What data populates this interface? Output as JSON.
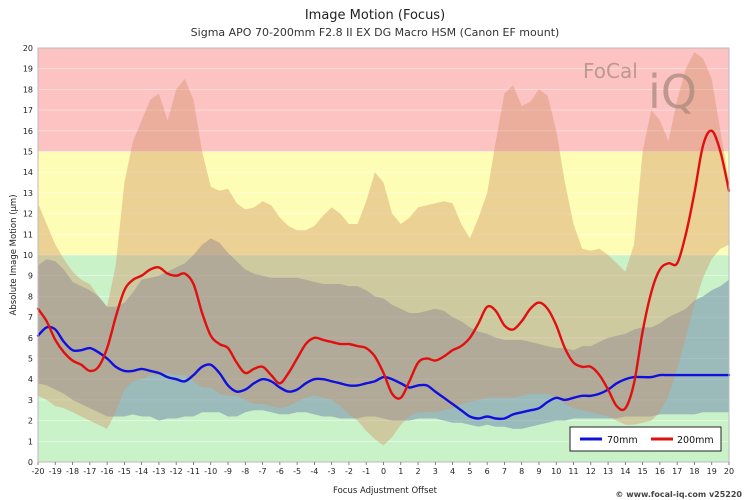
{
  "chart_data": {
    "type": "line",
    "title": "Image Motion (Focus)",
    "subtitle": "Sigma APO 70-200mm F2.8 II EX DG Macro HSM (Canon EF mount)",
    "xlabel": "Focus Adjustment Offset",
    "ylabel": "Absolute Image Motion (µm)",
    "xlim": [
      -20,
      20
    ],
    "ylim": [
      0,
      20
    ],
    "x_tick_labels": [
      "-20",
      "-19",
      "-18",
      "-17",
      "-16",
      "-15",
      "-14",
      "-13",
      "-12",
      "-11",
      "-10",
      "-9",
      "-8",
      "-7",
      "-6",
      "-5",
      "-4",
      "-3",
      "-2",
      "-1",
      "0",
      "1",
      "2",
      "3",
      "4",
      "5",
      "6",
      "7",
      "8",
      "9",
      "10",
      "11",
      "12",
      "13",
      "14",
      "15",
      "16",
      "17",
      "18",
      "19",
      "20"
    ],
    "y_tick_labels": [
      "0",
      "1",
      "2",
      "3",
      "4",
      "5",
      "6",
      "7",
      "8",
      "9",
      "10",
      "11",
      "12",
      "13",
      "14",
      "15",
      "16",
      "17",
      "18",
      "19",
      "20"
    ],
    "grid": true,
    "legend_position": "bottom-right",
    "zones": [
      {
        "from": 0,
        "to": 10,
        "color": "#c9f2c9"
      },
      {
        "from": 10,
        "to": 15,
        "color": "#fdfdb5"
      },
      {
        "from": 15,
        "to": 20,
        "color": "#fdc2c2"
      }
    ],
    "series": [
      {
        "name": "70mm",
        "color": "#1010dd",
        "band_color": "#5a6fa8",
        "x": [
          -20,
          -19.5,
          -19,
          -18.5,
          -18,
          -17.5,
          -17,
          -16.5,
          -16,
          -15.5,
          -15,
          -14.5,
          -14,
          -13.5,
          -13,
          -12.5,
          -12,
          -11.5,
          -11,
          -10.5,
          -10,
          -9.5,
          -9,
          -8.5,
          -8,
          -7.5,
          -7,
          -6.5,
          -6,
          -5.5,
          -5,
          -4.5,
          -4,
          -3.5,
          -3,
          -2.5,
          -2,
          -1.5,
          -1,
          -0.5,
          0,
          0.5,
          1,
          1.5,
          2,
          2.5,
          3,
          3.5,
          4,
          4.5,
          5,
          5.5,
          6,
          6.5,
          7,
          7.5,
          8,
          8.5,
          9,
          9.5,
          10,
          10.5,
          11,
          11.5,
          12,
          12.5,
          13,
          13.5,
          14,
          14.5,
          15,
          15.5,
          16,
          16.5,
          17,
          17.5,
          18,
          18.5,
          19,
          19.5,
          20
        ],
        "values": [
          6.1,
          6.5,
          6.4,
          5.8,
          5.4,
          5.4,
          5.5,
          5.3,
          5.0,
          4.6,
          4.4,
          4.4,
          4.5,
          4.4,
          4.3,
          4.1,
          4.0,
          3.9,
          4.2,
          4.6,
          4.7,
          4.3,
          3.7,
          3.4,
          3.5,
          3.8,
          4.0,
          3.9,
          3.6,
          3.4,
          3.5,
          3.8,
          4.0,
          4.0,
          3.9,
          3.8,
          3.7,
          3.7,
          3.8,
          3.9,
          4.1,
          4.0,
          3.8,
          3.6,
          3.7,
          3.7,
          3.4,
          3.1,
          2.8,
          2.5,
          2.2,
          2.1,
          2.2,
          2.1,
          2.1,
          2.3,
          2.4,
          2.5,
          2.6,
          2.9,
          3.1,
          3.0,
          3.1,
          3.2,
          3.2,
          3.3,
          3.5,
          3.8,
          4.0,
          4.1,
          4.1,
          4.1,
          4.2,
          4.2,
          4.2,
          4.2,
          4.2,
          4.2,
          4.2,
          4.2,
          4.2
        ],
        "band_upper": [
          9.5,
          9.8,
          9.7,
          9.3,
          8.7,
          8.5,
          8.3,
          8.0,
          7.5,
          7.5,
          7.7,
          8.2,
          8.8,
          8.9,
          9.0,
          9.2,
          9.4,
          9.6,
          10.0,
          10.5,
          10.8,
          10.6,
          10.1,
          9.7,
          9.3,
          9.1,
          9.0,
          8.9,
          8.9,
          8.9,
          8.9,
          8.8,
          8.7,
          8.6,
          8.6,
          8.6,
          8.5,
          8.5,
          8.3,
          8.0,
          7.9,
          7.6,
          7.4,
          7.2,
          7.2,
          7.3,
          7.4,
          7.3,
          7.0,
          6.8,
          6.5,
          6.3,
          6.2,
          6.0,
          5.9,
          5.9,
          5.9,
          5.8,
          5.7,
          5.6,
          5.5,
          5.5,
          5.4,
          5.6,
          5.6,
          5.8,
          6.0,
          6.1,
          6.2,
          6.4,
          6.5,
          6.5,
          6.7,
          7.0,
          7.2,
          7.4,
          7.8,
          8.0,
          8.3,
          8.5,
          8.8
        ],
        "band_lower": [
          3.8,
          3.7,
          3.5,
          3.3,
          3.0,
          2.8,
          2.6,
          2.4,
          2.2,
          2.2,
          2.2,
          2.3,
          2.2,
          2.2,
          2.0,
          2.1,
          2.1,
          2.2,
          2.2,
          2.4,
          2.4,
          2.4,
          2.2,
          2.2,
          2.4,
          2.5,
          2.5,
          2.4,
          2.3,
          2.3,
          2.4,
          2.4,
          2.3,
          2.2,
          2.2,
          2.1,
          2.1,
          2.1,
          2.2,
          2.2,
          2.1,
          2.0,
          2.0,
          2.0,
          2.1,
          2.1,
          2.1,
          2.0,
          1.9,
          1.9,
          1.8,
          1.7,
          1.8,
          1.7,
          1.7,
          1.6,
          1.6,
          1.7,
          1.8,
          1.9,
          2.0,
          2.0,
          2.1,
          2.1,
          2.1,
          2.1,
          2.1,
          2.1,
          2.2,
          2.2,
          2.2,
          2.2,
          2.3,
          2.3,
          2.3,
          2.3,
          2.3,
          2.4,
          2.4,
          2.4,
          2.4
        ]
      },
      {
        "name": "200mm",
        "color": "#e01010",
        "band_color": "#d3936a",
        "x": [
          -20,
          -19.5,
          -19,
          -18.5,
          -18,
          -17.5,
          -17,
          -16.5,
          -16,
          -15.5,
          -15,
          -14.5,
          -14,
          -13.5,
          -13,
          -12.5,
          -12,
          -11.5,
          -11,
          -10.5,
          -10,
          -9.5,
          -9,
          -8.5,
          -8,
          -7.5,
          -7,
          -6.5,
          -6,
          -5.5,
          -5,
          -4.5,
          -4,
          -3.5,
          -3,
          -2.5,
          -2,
          -1.5,
          -1,
          -0.5,
          0,
          0.5,
          1,
          1.5,
          2,
          2.5,
          3,
          3.5,
          4,
          4.5,
          5,
          5.5,
          6,
          6.5,
          7,
          7.5,
          8,
          8.5,
          9,
          9.5,
          10,
          10.5,
          11,
          11.5,
          12,
          12.5,
          13,
          13.5,
          14,
          14.5,
          15,
          15.5,
          16,
          16.5,
          17,
          17.5,
          18,
          18.5,
          19,
          19.5,
          20
        ],
        "values": [
          7.4,
          6.8,
          5.9,
          5.3,
          4.9,
          4.7,
          4.4,
          4.6,
          5.5,
          7.0,
          8.3,
          8.8,
          9.0,
          9.3,
          9.4,
          9.1,
          9.0,
          9.1,
          8.6,
          7.2,
          6.1,
          5.7,
          5.5,
          4.8,
          4.3,
          4.5,
          4.6,
          4.2,
          3.8,
          4.3,
          5.0,
          5.7,
          6.0,
          5.9,
          5.8,
          5.7,
          5.7,
          5.6,
          5.5,
          5.1,
          4.3,
          3.3,
          3.1,
          3.9,
          4.8,
          5.0,
          4.9,
          5.1,
          5.4,
          5.6,
          6.0,
          6.7,
          7.5,
          7.3,
          6.6,
          6.4,
          6.8,
          7.4,
          7.7,
          7.4,
          6.6,
          5.5,
          4.8,
          4.6,
          4.6,
          4.2,
          3.5,
          2.7,
          2.6,
          3.8,
          6.3,
          8.2,
          9.3,
          9.6,
          9.6,
          11.0,
          13.0,
          15.3,
          16.0,
          15.0,
          13.1
        ],
        "band_upper": [
          12.5,
          11.5,
          10.5,
          9.8,
          9.2,
          8.8,
          8.6,
          8.0,
          7.5,
          9.5,
          13.5,
          15.5,
          16.5,
          17.5,
          17.8,
          16.5,
          18.0,
          18.5,
          17.5,
          15.0,
          13.3,
          13.1,
          13.2,
          12.5,
          12.2,
          12.3,
          12.6,
          12.4,
          11.8,
          11.4,
          11.2,
          11.2,
          11.4,
          11.9,
          12.3,
          12.0,
          11.5,
          11.5,
          12.6,
          14.0,
          13.5,
          12.0,
          11.5,
          11.8,
          12.3,
          12.4,
          12.5,
          12.6,
          12.5,
          11.5,
          10.8,
          11.8,
          13.0,
          15.5,
          17.8,
          18.2,
          17.2,
          17.4,
          18.0,
          17.7,
          16.0,
          13.5,
          11.5,
          10.3,
          10.2,
          10.3,
          10.0,
          9.6,
          9.2,
          10.5,
          15.0,
          17.0,
          16.5,
          15.5,
          17.5,
          19.0,
          19.8,
          19.5,
          18.5,
          16.0,
          13.5
        ],
        "band_lower": [
          3.2,
          3.0,
          2.7,
          2.6,
          2.4,
          2.2,
          2.0,
          1.8,
          1.6,
          2.4,
          3.5,
          3.9,
          4.0,
          4.2,
          4.2,
          4.3,
          4.2,
          4.2,
          3.9,
          3.6,
          3.6,
          3.3,
          3.2,
          3.2,
          3.0,
          2.8,
          2.8,
          2.7,
          2.6,
          2.7,
          2.9,
          3.1,
          3.2,
          3.1,
          3.0,
          2.7,
          2.3,
          2.0,
          1.5,
          1.1,
          0.8,
          1.2,
          1.8,
          2.2,
          2.4,
          2.4,
          2.4,
          2.5,
          2.6,
          2.8,
          2.9,
          3.0,
          3.1,
          3.1,
          3.1,
          3.1,
          3.2,
          3.3,
          3.3,
          3.3,
          3.1,
          2.8,
          2.6,
          2.5,
          2.4,
          2.3,
          2.2,
          2.0,
          1.8,
          1.8,
          1.9,
          2.0,
          2.4,
          3.2,
          4.5,
          6.0,
          7.6,
          8.9,
          9.8,
          10.3,
          10.5
        ]
      }
    ]
  },
  "watermark": {
    "text_left": "FoCal",
    "text_right": "iQ"
  },
  "footer": "© www.focal-iq.com v25220"
}
